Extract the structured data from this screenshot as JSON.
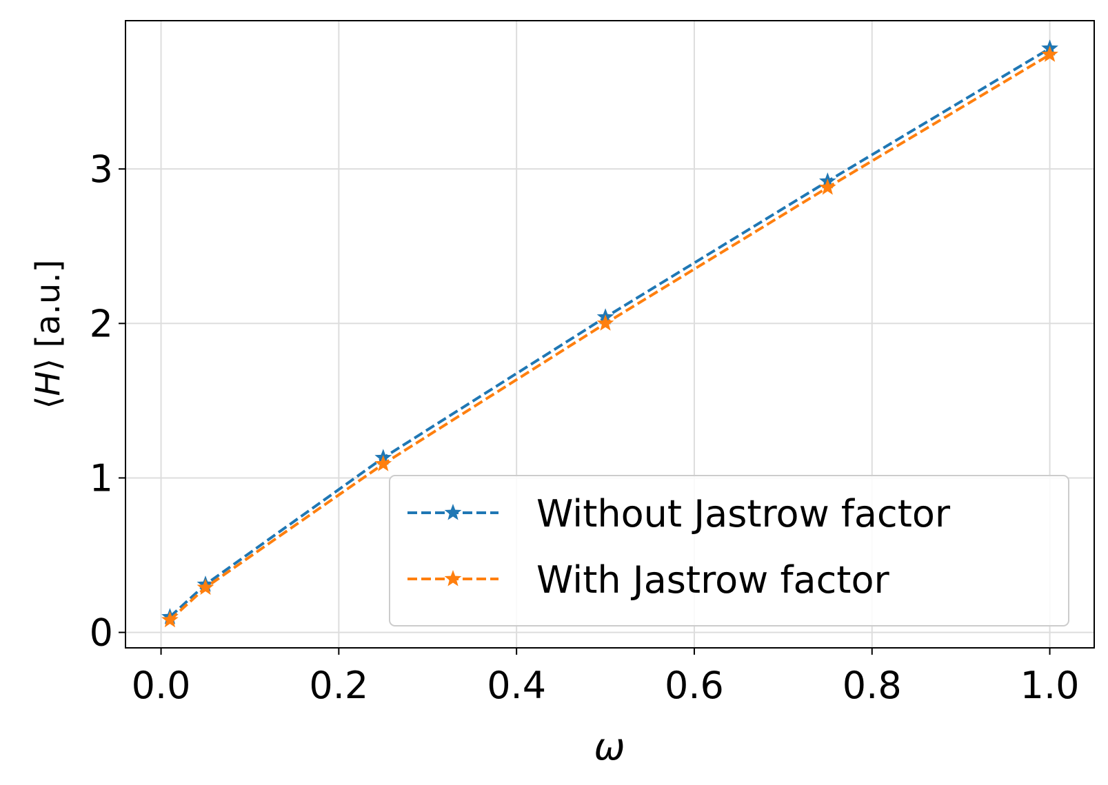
{
  "chart_data": {
    "type": "line",
    "title": "",
    "xlabel": "ω",
    "ylabel": "⟨H⟩ [a.u.]",
    "ylabel_parts": [
      "⟨",
      "H",
      "⟩ [a.u.]"
    ],
    "xlim": [
      -0.04,
      1.05
    ],
    "ylim": [
      -0.1,
      3.96
    ],
    "xticks": [
      0.0,
      0.2,
      0.4,
      0.6,
      0.8,
      1.0
    ],
    "xtick_labels": [
      "0.0",
      "0.2",
      "0.4",
      "0.6",
      "0.8",
      "1.0"
    ],
    "yticks": [
      0,
      1,
      2,
      3
    ],
    "ytick_labels": [
      "0",
      "1",
      "2",
      "3"
    ],
    "grid": true,
    "legend_position": "lower-right",
    "series": [
      {
        "name": "Without Jastrow factor",
        "color": "#1f77b4",
        "linestyle": "dashed",
        "marker": "star",
        "x": [
          0.01,
          0.05,
          0.25,
          0.5,
          0.75,
          1.0
        ],
        "y": [
          0.1,
          0.31,
          1.13,
          2.04,
          2.92,
          3.78
        ]
      },
      {
        "name": "With Jastrow factor",
        "color": "#ff7f0e",
        "linestyle": "dashed",
        "marker": "star",
        "x": [
          0.01,
          0.05,
          0.25,
          0.5,
          0.75,
          1.0
        ],
        "y": [
          0.08,
          0.29,
          1.09,
          2.0,
          2.88,
          3.74
        ]
      }
    ]
  }
}
